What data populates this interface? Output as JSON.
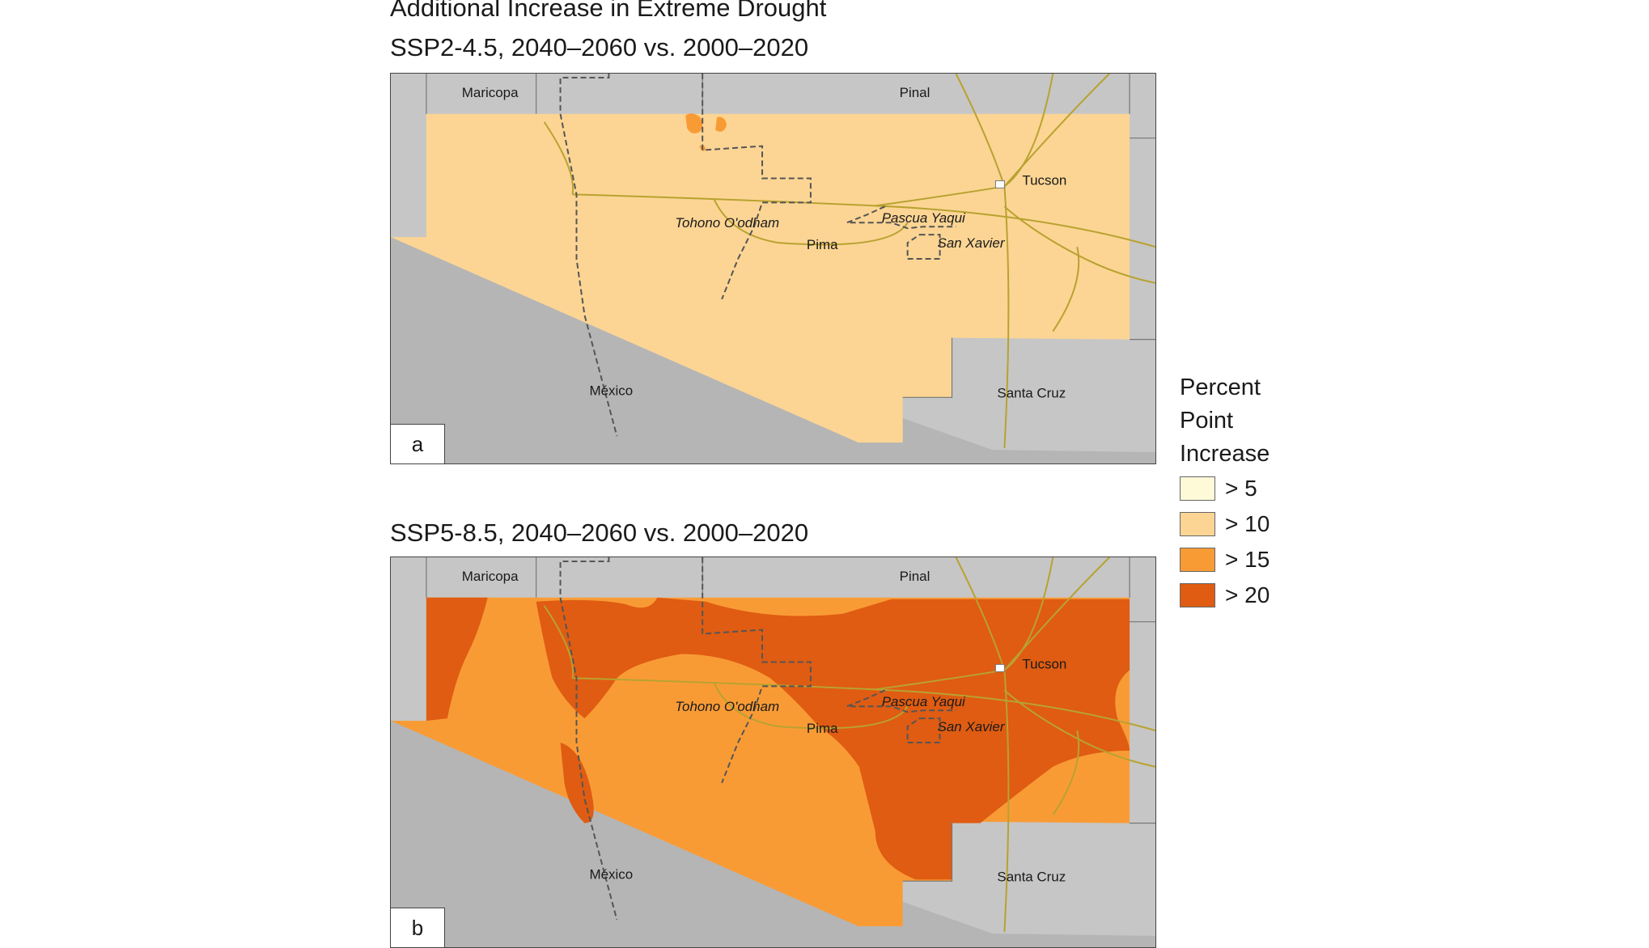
{
  "figure": {
    "title_line1": "Additional Increase in Extreme Drought",
    "title_line2": "SSP2-4.5, 2040–2060 vs. 2000–2020",
    "panel_b_title": "SSP5-8.5, 2040–2060 vs. 2000–2020"
  },
  "panels": [
    {
      "letter": "a",
      "scenario": "SSP2-4.5",
      "dominant_class": "> 10",
      "hotspot_class": "> 15"
    },
    {
      "letter": "b",
      "scenario": "SSP5-8.5",
      "dominant_class": "> 15",
      "hotspot_class": "> 20"
    }
  ],
  "map_labels": {
    "maricopa": "Maricopa",
    "pinal": "Pinal",
    "tucson": "Tucson",
    "tohono": "Tohono O'odham",
    "pascua": "Pascua Yaqui",
    "pima": "Pima",
    "san_xavier": "San Xavier",
    "mexico": "México",
    "santa_cruz": "Santa Cruz"
  },
  "legend": {
    "title_line1": "Percent",
    "title_line2": "Point",
    "title_line3": "Increase",
    "items": [
      {
        "label": "> 5",
        "color": "#fefad8"
      },
      {
        "label": "> 10",
        "color": "#fcd594"
      },
      {
        "label": "> 15",
        "color": "#f99b35"
      },
      {
        "label": "> 20",
        "color": "#df5c12"
      }
    ]
  },
  "colors": {
    "background_terrain": "#c7c7c7",
    "roads": "#b8a230",
    "boundaries": "#555555"
  }
}
